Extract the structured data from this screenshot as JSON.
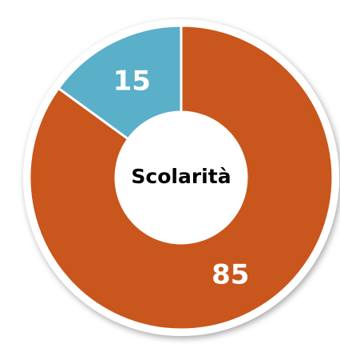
{
  "chart_data": {
    "type": "donut",
    "title": "Scolarità",
    "values": [
      85,
      15
    ],
    "colors": [
      "#c9561c",
      "#5aafc9"
    ]
  }
}
